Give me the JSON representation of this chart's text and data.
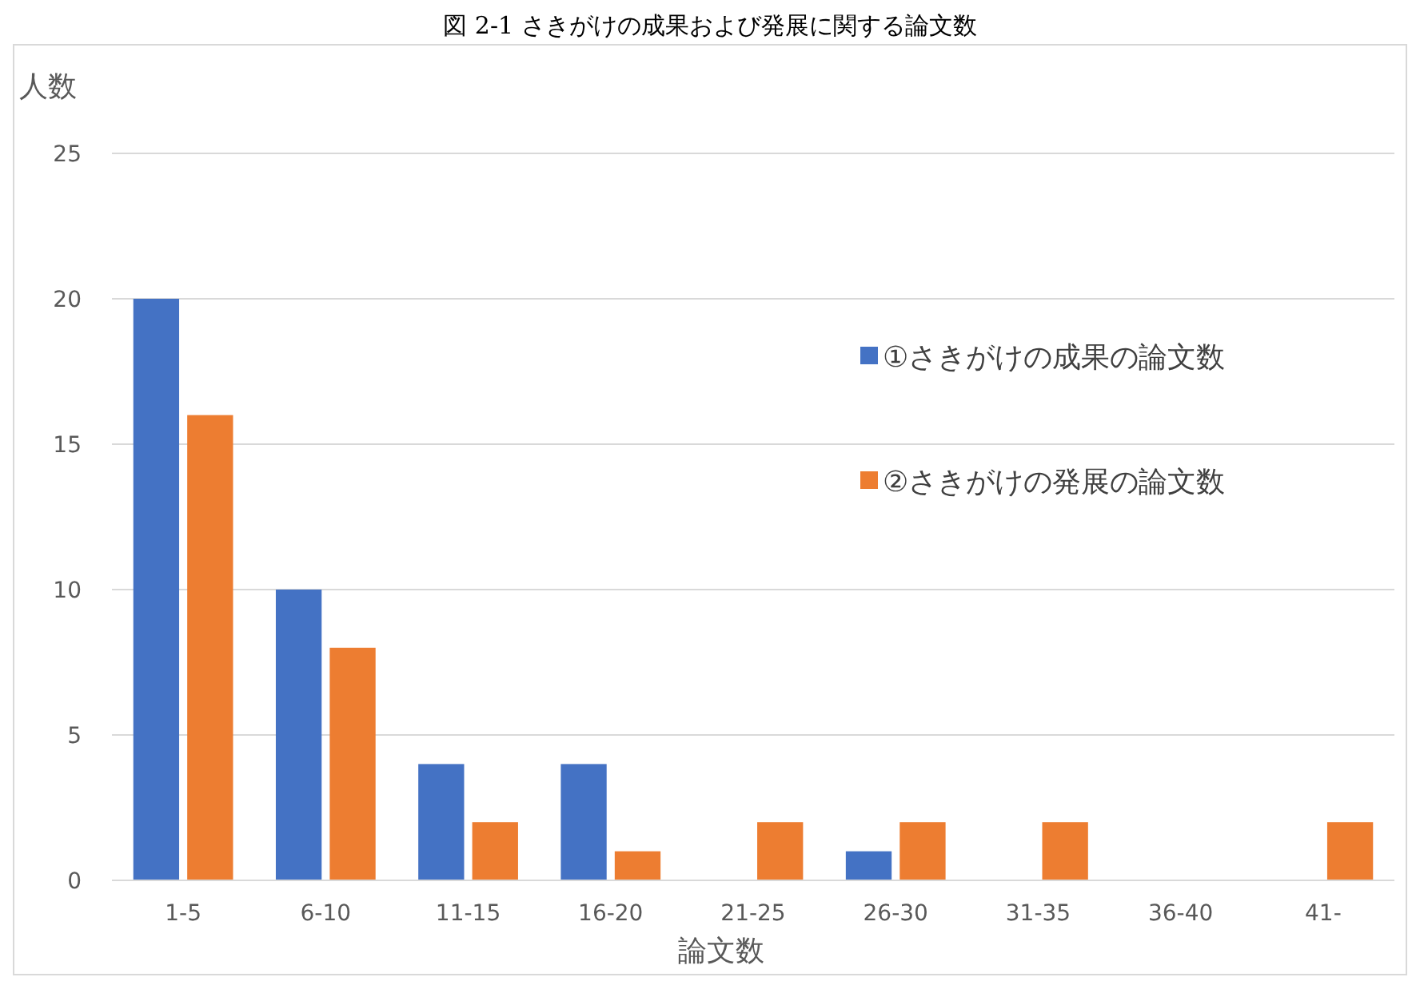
{
  "chart_data": {
    "type": "bar",
    "title": "図 2-1 さきがけの成果および発展に関する論文数",
    "xlabel": "論文数",
    "ylabel": "人数",
    "categories": [
      "1-5",
      "6-10",
      "11-15",
      "16-20",
      "21-25",
      "26-30",
      "31-35",
      "36-40",
      "41-"
    ],
    "series": [
      {
        "name": "①さきがけの成果の論文数",
        "color": "#4472c4",
        "values": [
          20,
          10,
          4,
          4,
          0,
          1,
          0,
          0,
          0
        ]
      },
      {
        "name": "②さきがけの発展の論文数",
        "color": "#ed7d31",
        "values": [
          16,
          8,
          2,
          1,
          2,
          2,
          2,
          0,
          2
        ]
      }
    ],
    "ylim": [
      0,
      25
    ],
    "yticks": [
      0,
      5,
      10,
      15,
      20,
      25
    ],
    "grid": "y",
    "legend": "right"
  }
}
